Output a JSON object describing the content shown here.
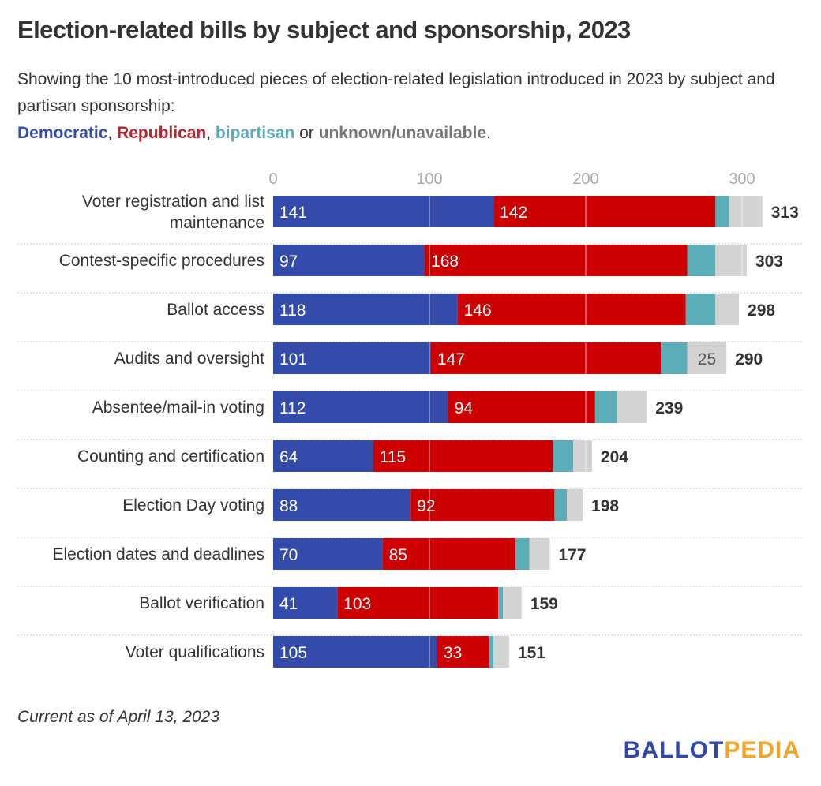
{
  "header": {
    "title": "Election-related bills by subject and sponsorship, 2023",
    "subtitle": "Showing the 10 most-introduced pieces of election-related legislation introduced in 2023 by subject and partisan sponsorship:",
    "legend": {
      "democratic": "Democratic",
      "republican": "Republican",
      "bipartisan": "bipartisan",
      "unknown": "unknown/unavailable",
      "sep1": ", ",
      "sep2": ", ",
      "sep3": " or ",
      "end": "."
    }
  },
  "colors": {
    "democratic": "#344ba9",
    "republican": "#cc0000",
    "bipartisan": "#5badb8",
    "unknown": "#d3d3d3"
  },
  "chart_data": {
    "type": "bar",
    "orientation": "horizontal",
    "stacked": true,
    "title": "Election-related bills by subject and sponsorship, 2023",
    "xlabel": "",
    "ylabel": "",
    "xlim": [
      0,
      320
    ],
    "x_ticks": [
      0,
      100,
      200,
      300
    ],
    "grid": true,
    "legend_placement": "subtitle",
    "categories": [
      [
        "Voter registration and list",
        "maintenance"
      ],
      [
        "Contest-specific procedures"
      ],
      [
        "Ballot access"
      ],
      [
        "Audits and oversight"
      ],
      [
        "Absentee/mail-in voting"
      ],
      [
        "Counting and certification"
      ],
      [
        "Election Day voting"
      ],
      [
        "Election dates and deadlines"
      ],
      [
        "Ballot verification"
      ],
      [
        "Voter qualifications"
      ]
    ],
    "series": [
      {
        "name": "Democratic",
        "key": "democratic",
        "values": [
          141,
          97,
          118,
          101,
          112,
          64,
          88,
          70,
          41,
          105
        ],
        "show_labels": [
          true,
          true,
          true,
          true,
          true,
          true,
          true,
          true,
          true,
          true
        ]
      },
      {
        "name": "Republican",
        "key": "republican",
        "values": [
          142,
          168,
          146,
          147,
          94,
          115,
          92,
          85,
          103,
          33
        ],
        "show_labels": [
          true,
          true,
          true,
          true,
          true,
          true,
          true,
          true,
          true,
          true
        ]
      },
      {
        "name": "Bipartisan",
        "key": "bipartisan",
        "values": [
          9,
          18,
          19,
          17,
          14,
          13,
          8,
          9,
          3,
          3
        ],
        "show_labels": [
          false,
          false,
          false,
          false,
          false,
          false,
          false,
          false,
          false,
          false
        ]
      },
      {
        "name": "Unknown/unavailable",
        "key": "unknown",
        "values": [
          21,
          20,
          15,
          25,
          19,
          12,
          10,
          13,
          12,
          10
        ],
        "show_labels": [
          false,
          false,
          false,
          true,
          false,
          false,
          false,
          false,
          false,
          false
        ]
      }
    ],
    "totals": [
      313,
      303,
      298,
      290,
      239,
      204,
      198,
      177,
      159,
      151
    ]
  },
  "footer": {
    "note": "Current as of April 13, 2023",
    "logo_part1": "BALLOT",
    "logo_part2": "PEDIA"
  }
}
